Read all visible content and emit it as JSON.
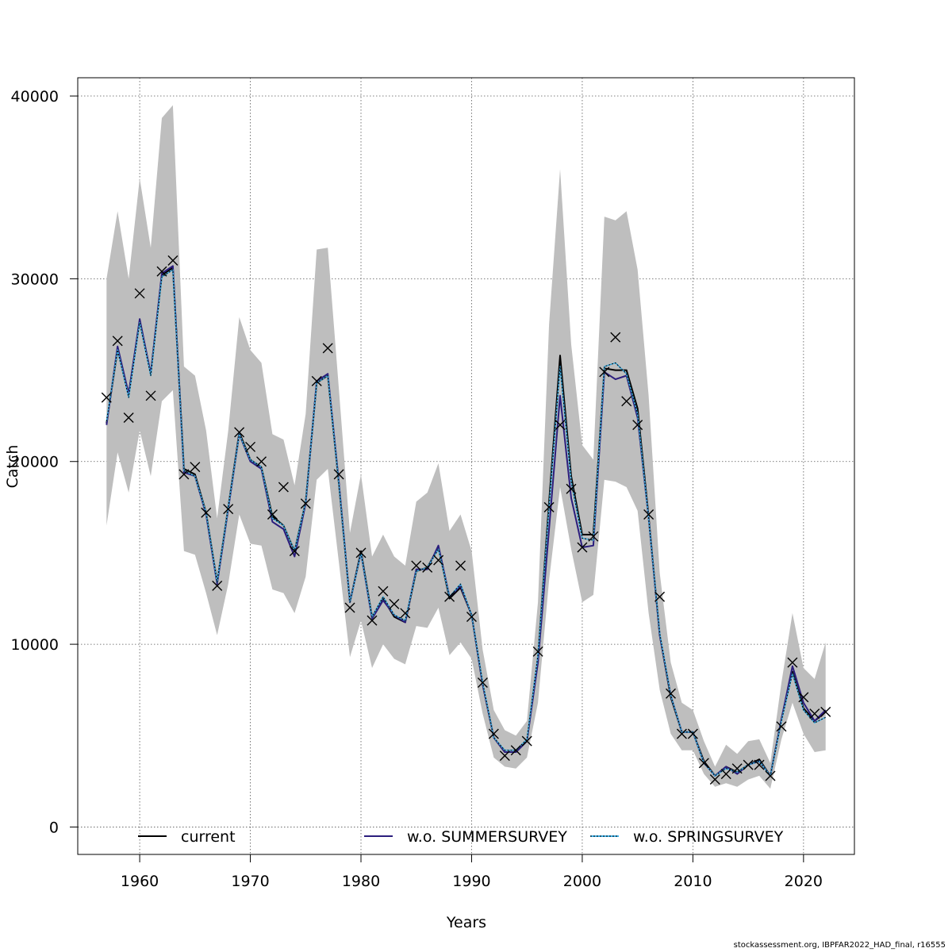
{
  "chart_data": {
    "type": "line",
    "title": "",
    "xlabel": "Years",
    "ylabel": "Catch",
    "xlim": [
      1954.4,
      2024.6
    ],
    "ylim": [
      -1500,
      41000
    ],
    "xticks": [
      1960,
      1970,
      1980,
      1990,
      2000,
      2010,
      2020
    ],
    "yticks": [
      0,
      10000,
      20000,
      30000,
      40000
    ],
    "grid": true,
    "legend_position": "bottom",
    "colors": {
      "band": "#bebebe",
      "current": "#000000",
      "summer": "#2b1d7d",
      "spring": "#3fb1e8",
      "observed": "#000000"
    },
    "years": [
      1957,
      1958,
      1959,
      1960,
      1961,
      1962,
      1963,
      1964,
      1965,
      1966,
      1967,
      1968,
      1969,
      1970,
      1971,
      1972,
      1973,
      1974,
      1975,
      1976,
      1977,
      1978,
      1979,
      1980,
      1981,
      1982,
      1983,
      1984,
      1985,
      1986,
      1987,
      1988,
      1989,
      1990,
      1991,
      1992,
      1993,
      1994,
      1995,
      1996,
      1997,
      1998,
      1999,
      2000,
      2001,
      2002,
      2003,
      2004,
      2005,
      2006,
      2007,
      2008,
      2009,
      2010,
      2011,
      2012,
      2013,
      2014,
      2015,
      2016,
      2017,
      2018,
      2019,
      2020,
      2021,
      2022
    ],
    "band": {
      "name": "confidence interval",
      "lower": [
        16500,
        20500,
        18300,
        21700,
        19200,
        23300,
        23900,
        15100,
        14900,
        12800,
        10500,
        13300,
        17100,
        15500,
        15400,
        13000,
        12800,
        11700,
        13700,
        19000,
        19600,
        14500,
        9300,
        11300,
        8700,
        10000,
        9200,
        8900,
        11000,
        10900,
        12000,
        9400,
        10100,
        9200,
        6200,
        3800,
        3300,
        3200,
        3800,
        6800,
        13500,
        18600,
        15200,
        12300,
        12700,
        19000,
        18900,
        18600,
        17300,
        11700,
        7500,
        5100,
        4200,
        4200,
        2900,
        2200,
        2400,
        2200,
        2600,
        2800,
        2100,
        4800,
        6800,
        5100,
        4100,
        4200
      ],
      "upper": [
        30000,
        33700,
        30000,
        35500,
        31700,
        38800,
        39500,
        25200,
        24700,
        21700,
        16900,
        21700,
        27900,
        26100,
        25400,
        21500,
        21200,
        18700,
        22600,
        31600,
        31700,
        24000,
        16100,
        19300,
        14800,
        16000,
        14800,
        14300,
        17800,
        18300,
        19900,
        16200,
        17100,
        15100,
        9700,
        6400,
        5300,
        5000,
        5800,
        12300,
        27500,
        36000,
        26400,
        20900,
        20100,
        33400,
        33200,
        33700,
        30500,
        23600,
        13900,
        9000,
        6800,
        6400,
        4700,
        3300,
        4500,
        4000,
        4700,
        4800,
        3500,
        7900,
        11700,
        8700,
        8100,
        10100
      ]
    },
    "series": [
      {
        "name": "current",
        "values": [
          22100,
          26100,
          23700,
          27700,
          24800,
          30200,
          30600,
          19600,
          19300,
          17200,
          13400,
          17500,
          21600,
          20100,
          19700,
          17000,
          16500,
          15100,
          17800,
          24300,
          24700,
          18800,
          12300,
          15100,
          11500,
          12500,
          11500,
          11200,
          14000,
          14200,
          15300,
          12500,
          13100,
          11600,
          7800,
          4900,
          4100,
          4100,
          4700,
          9300,
          17800,
          25800,
          19200,
          16000,
          16000,
          25100,
          25000,
          25000,
          22900,
          17000,
          10500,
          7100,
          5200,
          5200,
          3600,
          2800,
          3300,
          3000,
          3400,
          3700,
          2800,
          5900,
          8500,
          6500,
          5800,
          6300
        ]
      },
      {
        "name": "w.o. SUMMERSURVEY",
        "values": [
          22000,
          26300,
          23700,
          27800,
          24800,
          30300,
          30700,
          19400,
          19200,
          17100,
          13300,
          17400,
          21500,
          20000,
          19600,
          16700,
          16300,
          14800,
          17700,
          24400,
          24800,
          18900,
          12300,
          15000,
          11400,
          12400,
          11600,
          11200,
          14100,
          14100,
          15400,
          12600,
          13200,
          11600,
          7800,
          4900,
          4100,
          4100,
          4700,
          9000,
          16300,
          23600,
          18000,
          15300,
          15400,
          24900,
          24500,
          24700,
          22400,
          16900,
          10500,
          7200,
          5200,
          5200,
          3500,
          2800,
          3300,
          2900,
          3400,
          3600,
          2800,
          5900,
          8800,
          6800,
          5800,
          6400
        ]
      },
      {
        "name": "w.o. SPRINGSURVEY",
        "values": [
          22200,
          26100,
          23500,
          27600,
          24700,
          30100,
          30500,
          19500,
          19200,
          17200,
          13400,
          17500,
          21500,
          20100,
          19700,
          16900,
          16500,
          15100,
          17800,
          24300,
          24700,
          18800,
          12300,
          15000,
          11500,
          12600,
          11600,
          11300,
          14000,
          14200,
          15200,
          12600,
          13300,
          11600,
          7900,
          4900,
          4200,
          4200,
          4800,
          9400,
          17500,
          25200,
          18900,
          15800,
          15700,
          25200,
          25400,
          24800,
          22600,
          16900,
          10600,
          7200,
          5200,
          5200,
          3500,
          2800,
          3200,
          3000,
          3400,
          3600,
          2800,
          5800,
          8400,
          6400,
          5700,
          6000
        ]
      }
    ],
    "observed": {
      "name": "observed catch",
      "values": [
        23500,
        26600,
        22400,
        29200,
        23600,
        30400,
        31000,
        19300,
        19700,
        17200,
        13200,
        17400,
        21600,
        20800,
        20000,
        17100,
        18600,
        15100,
        17700,
        24400,
        26200,
        19300,
        12000,
        15000,
        11300,
        12900,
        12200,
        11700,
        14300,
        14200,
        14600,
        12600,
        14300,
        11500,
        7900,
        5100,
        3900,
        4200,
        4700,
        9600,
        17500,
        22000,
        18500,
        15300,
        15900,
        24900,
        26800,
        23300,
        22000,
        17100,
        12600,
        7300,
        5100,
        5100,
        3500,
        2600,
        2900,
        3200,
        3400,
        3400,
        2800,
        5500,
        9000,
        7100,
        6200,
        6300
      ]
    }
  },
  "footer": "stockassessment.org, IBPFAR2022_HAD_final, r16555"
}
